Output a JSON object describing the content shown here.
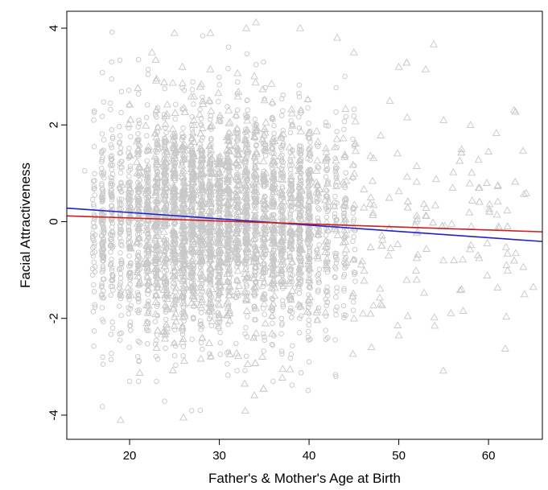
{
  "chart_data": {
    "type": "scatter",
    "title": "",
    "xlabel": "Father's & Mother's Age at Birth",
    "ylabel": "Facial Attractiveness",
    "xlim": [
      13,
      66
    ],
    "ylim": [
      -4.5,
      4.35
    ],
    "xticks": [
      20,
      30,
      40,
      50,
      60
    ],
    "yticks": [
      -4,
      -2,
      0,
      2,
      4
    ],
    "grid": false,
    "legend": "none",
    "point_color": "#c8c8c8",
    "series": [
      {
        "marker": "circle",
        "note_points_range_x": [
          14,
          45
        ]
      },
      {
        "marker": "triangle",
        "note_points_range_x": [
          14,
          65
        ]
      }
    ],
    "trend_lines": [
      {
        "color": "#2020cc",
        "x": [
          13,
          66
        ],
        "y": [
          0.28,
          -0.41
        ]
      },
      {
        "color": "#cc2020",
        "x": [
          13,
          66
        ],
        "y": [
          0.12,
          -0.21
        ]
      }
    ],
    "sample_points": [
      [
        19,
        -4.1
      ],
      [
        26,
        -4.05
      ],
      [
        22.5,
        3.5
      ],
      [
        25,
        3.9
      ],
      [
        29,
        3.9
      ],
      [
        33,
        4.0
      ],
      [
        39,
        4.0
      ],
      [
        45,
        3.5
      ],
      [
        50,
        3.2
      ],
      [
        53,
        3.15
      ],
      [
        49,
        2.5
      ],
      [
        55,
        2.1
      ],
      [
        58,
        2.0
      ],
      [
        57,
        1.5
      ],
      [
        60,
        1.45
      ],
      [
        52,
        1.15
      ],
      [
        56,
        0.7
      ],
      [
        59,
        0.7
      ],
      [
        62,
        -0.9
      ],
      [
        64,
        -1.5
      ],
      [
        65,
        -1.35
      ],
      [
        57,
        -1.4
      ],
      [
        52,
        -1.2
      ],
      [
        51,
        -1.95
      ],
      [
        54,
        -2.15
      ],
      [
        50,
        -2.35
      ],
      [
        48,
        -1.7
      ],
      [
        46,
        -1.9
      ],
      [
        17,
        -2.8
      ],
      [
        20,
        -3.3
      ],
      [
        21,
        -3.3
      ],
      [
        23,
        -3.3
      ],
      [
        36,
        -3.3
      ],
      [
        43,
        -3.2
      ],
      [
        40,
        -2.9
      ],
      [
        16,
        2.1
      ],
      [
        18,
        1.9
      ],
      [
        15,
        1.05
      ],
      [
        17,
        -0.75
      ],
      [
        18,
        2.95
      ],
      [
        18,
        3.3
      ],
      [
        21,
        3.35
      ]
    ]
  }
}
